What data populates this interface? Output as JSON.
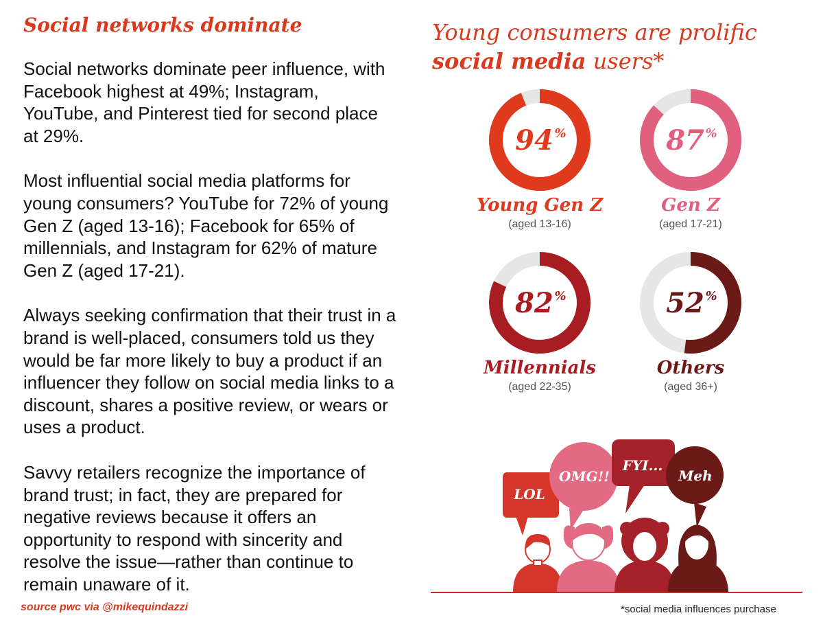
{
  "left": {
    "heading": "Social networks dominate",
    "paragraphs": [
      "Social networks dominate peer influence, with Facebook highest at 49%; Instagram, YouTube, and Pinterest tied for second place at 29%.",
      "Most influential social media platforms for young consumers? YouTube for 72% of young Gen Z (aged 13-16); Facebook for 65% of millennials, and Instagram for 62% of mature Gen Z (aged 17-21).",
      "Always seeking confirmation that their trust in a brand is well-placed, consumers told us they would be far more likely to buy a product if an influencer they follow on social media links to a discount, shares a positive review, or wears or uses a product.",
      "Savvy retailers recognize the importance of brand trust; in fact, they are prepared for negative reviews because it offers an opportunity to respond with sincerity and resolve the issue—rather than continue to remain unaware of it."
    ],
    "source": "source pwc via @mikequindazzi"
  },
  "right": {
    "title_line1": "Young consumers are prolific",
    "title_line2_bold": "social media",
    "title_line2_rest": " users*",
    "footnote": "*social media influences purchase"
  },
  "chart_data": {
    "type": "pie",
    "title": "Young consumers are prolific social media users*",
    "unit": "%",
    "percent_sign": "%",
    "series": [
      {
        "name": "Young Gen Z",
        "sublabel": "(aged 13-16)",
        "value": 94,
        "label": "94",
        "color": "#e03a1e"
      },
      {
        "name": "Gen Z",
        "sublabel": "(aged 17-21)",
        "value": 87,
        "label": "87",
        "color": "#e0607e"
      },
      {
        "name": "Millennials",
        "sublabel": "(aged 22-35)",
        "value": 82,
        "label": "82",
        "color": "#a81d22"
      },
      {
        "name": "Others",
        "sublabel": "(aged 36+)",
        "value": 52,
        "label": "52",
        "color": "#6b1a18"
      }
    ],
    "track_color": "#e6e6e6"
  },
  "illustration": {
    "bubbles": [
      {
        "text": "LOL",
        "color": "#d6352a"
      },
      {
        "text": "OMG!!",
        "color": "#e26a82"
      },
      {
        "text": "FYI...",
        "color": "#a5222a"
      },
      {
        "text": "Meh",
        "color": "#6b1a18"
      }
    ]
  }
}
